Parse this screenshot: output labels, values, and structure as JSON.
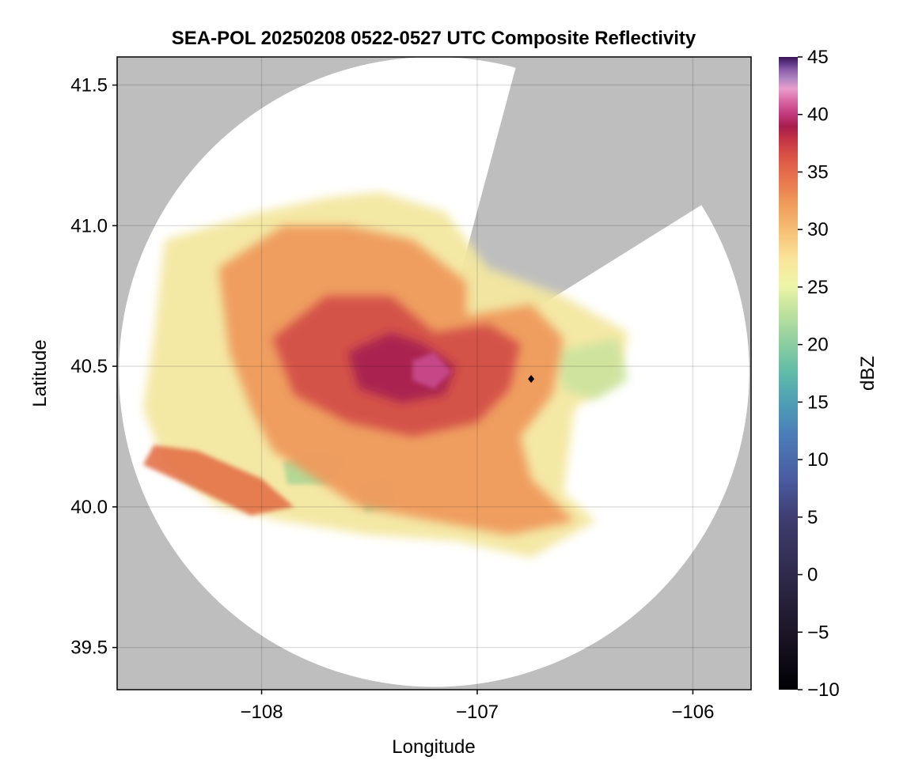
{
  "chart_data": {
    "type": "heatmap",
    "title": "SEA-POL 20250208 0522-0527 UTC Composite Reflectivity",
    "xlabel": "Longitude",
    "ylabel": "Latitude",
    "xlim": [
      -108.67,
      -105.73
    ],
    "ylim": [
      39.35,
      41.6
    ],
    "x_ticks": [
      -108,
      -107,
      -106
    ],
    "x_tick_labels": [
      "−108",
      "−107",
      "−106"
    ],
    "y_ticks": [
      39.5,
      40.0,
      40.5,
      41.0,
      41.5
    ],
    "y_tick_labels": [
      "39.5",
      "40.0",
      "40.5",
      "41.0",
      "41.5"
    ],
    "grid": true,
    "radar_site": {
      "lon": -107.2,
      "lat": 40.48
    },
    "radar_range_deg_lat": 1.12,
    "blocked_sector_azimuth_deg": [
      15,
      58
    ],
    "marker": {
      "lon": -106.75,
      "lat": 40.455,
      "symbol": "diamond"
    },
    "colorbar": {
      "label": "dBZ",
      "min": -10,
      "max": 45,
      "ticks": [
        -10,
        -5,
        0,
        5,
        10,
        15,
        20,
        25,
        30,
        35,
        40,
        45
      ],
      "tick_labels": [
        "−10",
        "−5",
        "0",
        "5",
        "10",
        "15",
        "20",
        "25",
        "30",
        "35",
        "40",
        "45"
      ],
      "colors": [
        "#000004",
        "#1c1627",
        "#2f2a4a",
        "#3f3d70",
        "#4a5aa0",
        "#4b7bb8",
        "#4e9cb5",
        "#5fbaa8",
        "#8fcfa0",
        "#c2e39e",
        "#eef5a8",
        "#fae49a",
        "#f7c57a",
        "#f1a25f",
        "#e97b4f",
        "#dc5646",
        "#c53346",
        "#a61c4e",
        "#c23a7c",
        "#d966a3",
        "#e89ccb",
        "#b288c4",
        "#8a5ca8",
        "#5e3685",
        "#3b1457"
      ]
    },
    "background_color": "#bebebe",
    "coverage_color": "#ffffff"
  }
}
